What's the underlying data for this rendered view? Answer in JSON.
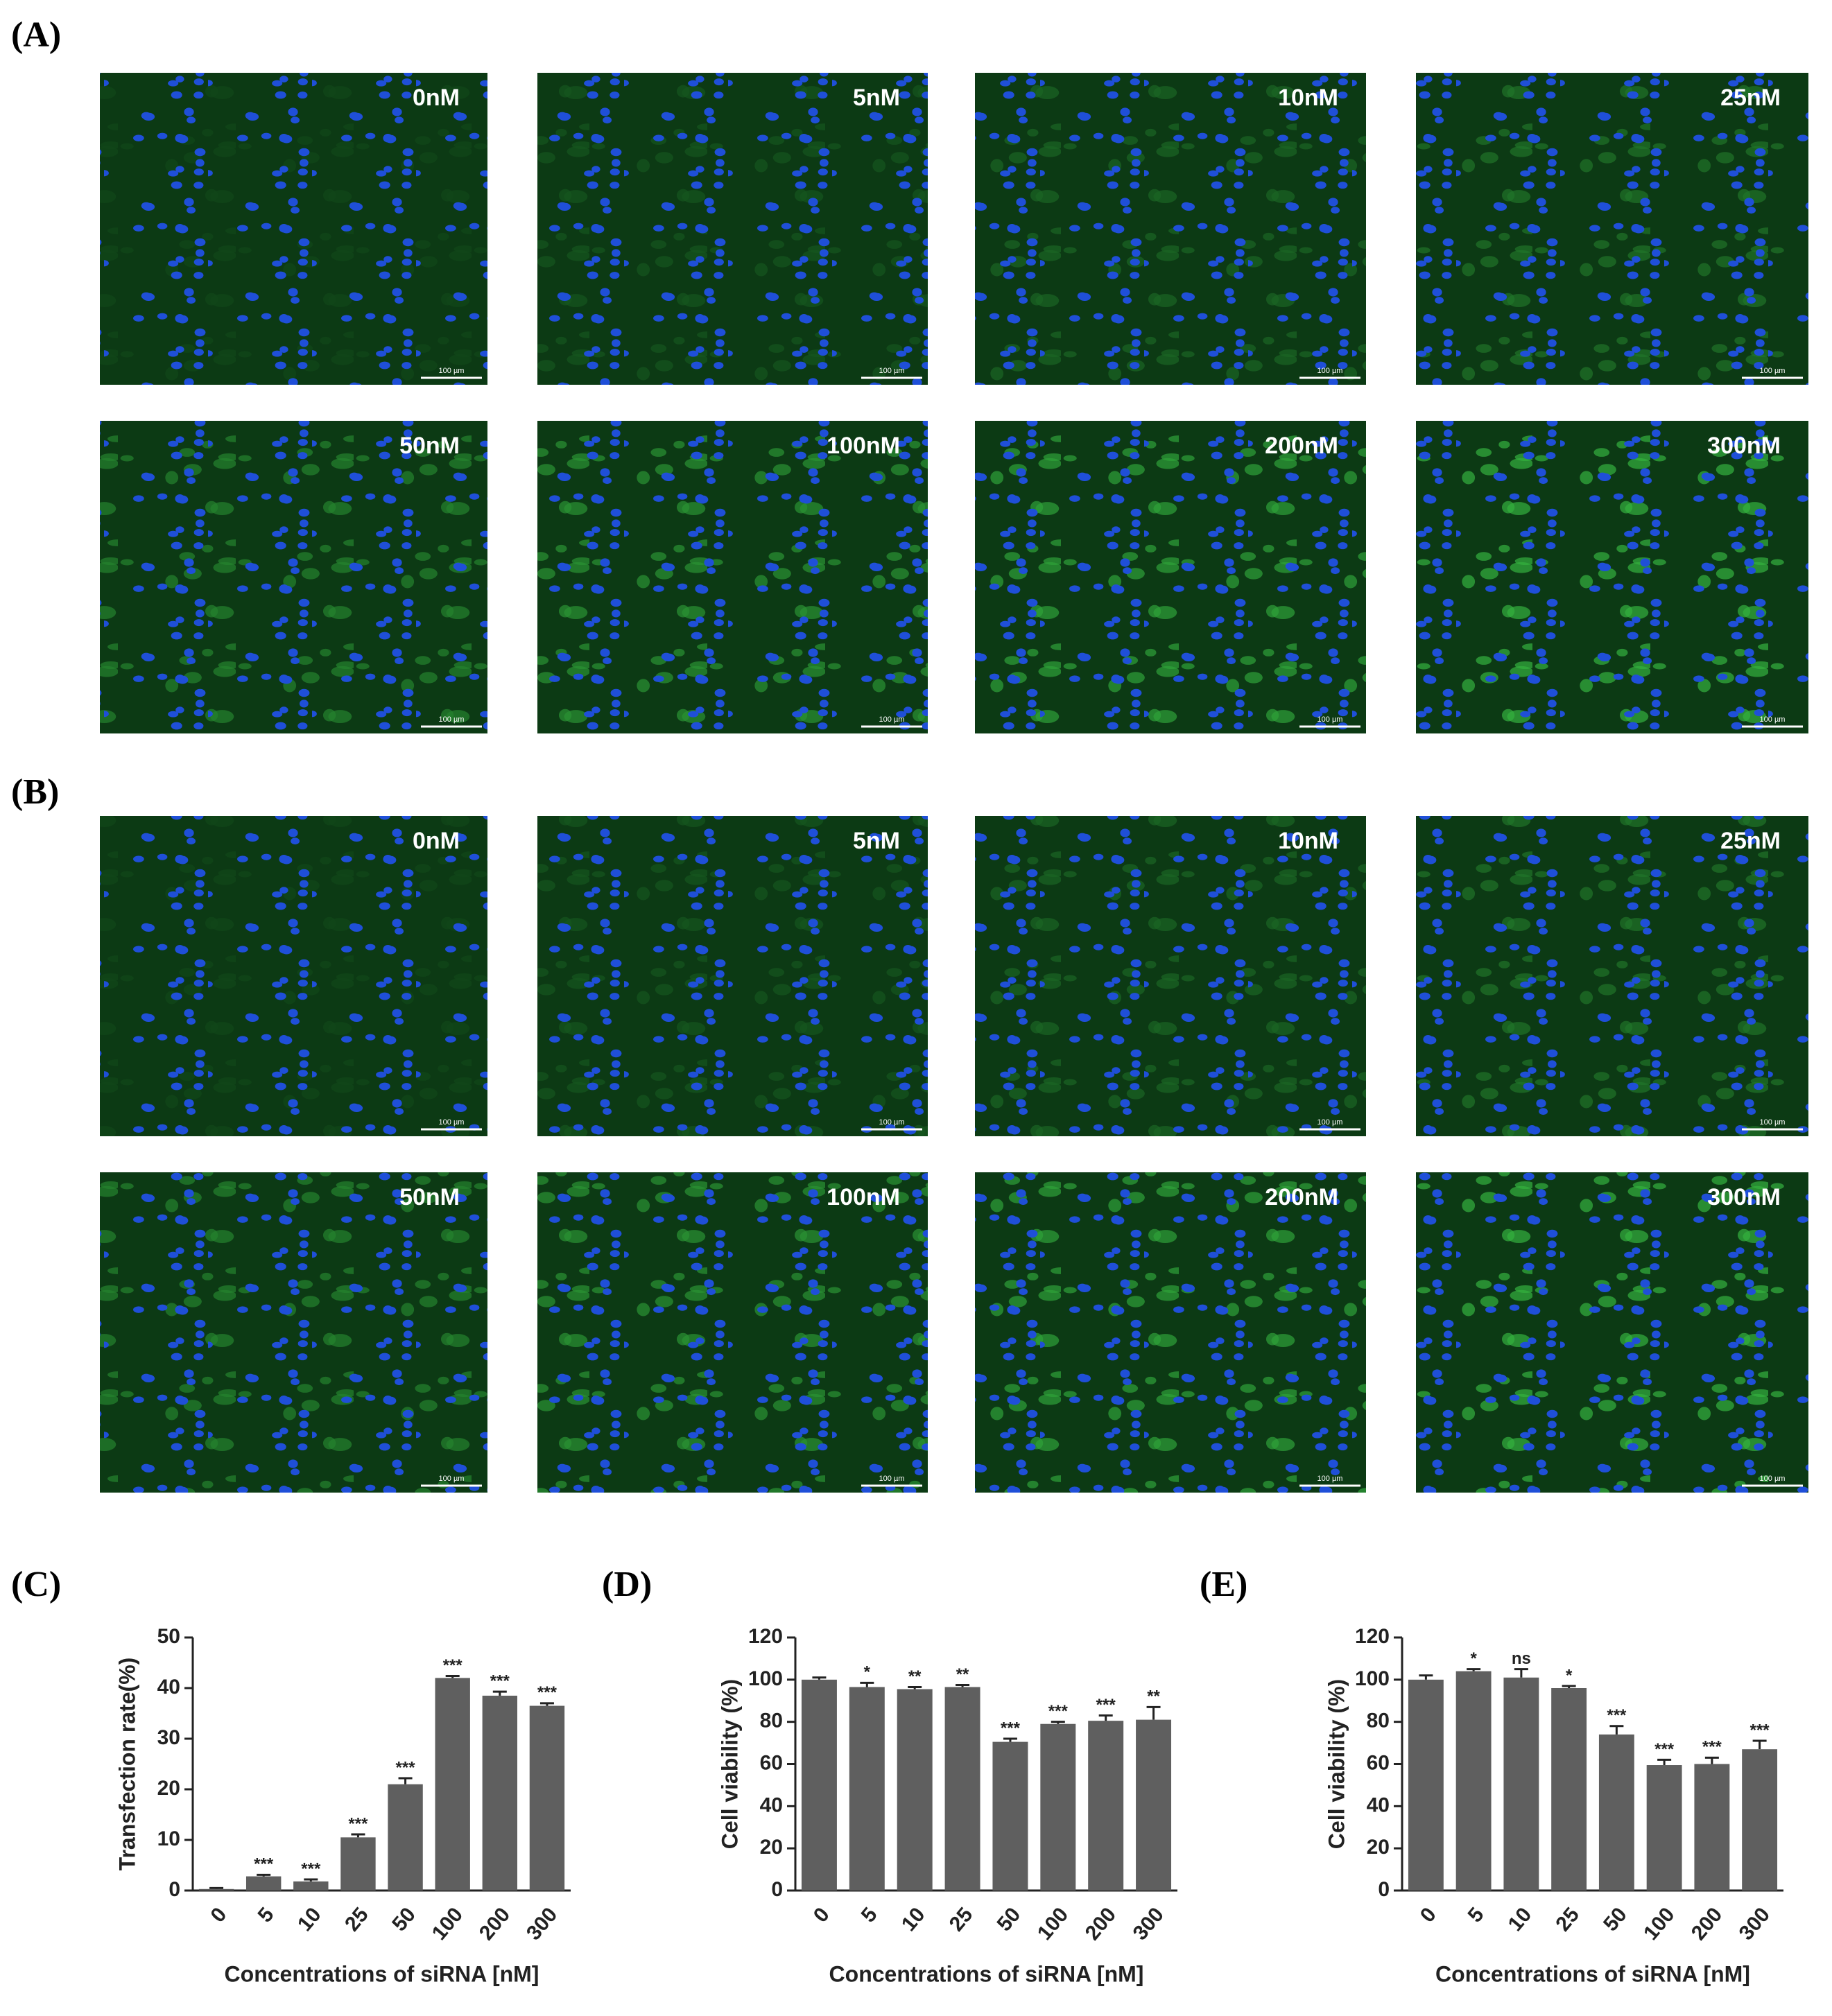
{
  "panels": [
    {
      "label": "(A)",
      "images": [
        {
          "label": "0nM",
          "scale_bar": "100 µm"
        },
        {
          "label": "5nM",
          "scale_bar": "100 µm"
        },
        {
          "label": "10nM",
          "scale_bar": "100 µm"
        },
        {
          "label": "25nM",
          "scale_bar": "100 µm"
        },
        {
          "label": "50nM",
          "scale_bar": "100 µm"
        },
        {
          "label": "100nM",
          "scale_bar": "100 µm"
        },
        {
          "label": "200nM",
          "scale_bar": "100 µm"
        },
        {
          "label": "300nM",
          "scale_bar": "100 µm"
        }
      ]
    },
    {
      "label": "(B)",
      "images": [
        {
          "label": "0nM",
          "scale_bar": "100 µm"
        },
        {
          "label": "5nM",
          "scale_bar": "100 µm"
        },
        {
          "label": "10nM",
          "scale_bar": "100 µm"
        },
        {
          "label": "25nM",
          "scale_bar": "100 µm"
        },
        {
          "label": "50nM",
          "scale_bar": "100 µm"
        },
        {
          "label": "100nM",
          "scale_bar": "100 µm"
        },
        {
          "label": "200nM",
          "scale_bar": "100 µm"
        },
        {
          "label": "300nM",
          "scale_bar": "100 µm"
        }
      ]
    }
  ],
  "chart_data": [
    {
      "type": "bar",
      "panel_label": "(C)",
      "y_label": "Transfection rate(%)",
      "x_label": "Concentrations of siRNA [nM]",
      "categories": [
        "0",
        "5",
        "10",
        "25",
        "50",
        "100",
        "200",
        "300"
      ],
      "values": [
        0.3,
        2.8,
        1.8,
        10.5,
        21,
        42,
        38.5,
        36.5
      ],
      "errors": [
        0.2,
        0.3,
        0.4,
        0.6,
        1.2,
        0.4,
        0.8,
        0.5
      ],
      "annotations": [
        null,
        "***",
        "***",
        "***",
        "***",
        "***",
        "***",
        "***"
      ],
      "color": "#5f5f5f",
      "ylim": [
        0,
        50
      ],
      "yticks": [
        0,
        10,
        20,
        30,
        40,
        50
      ]
    },
    {
      "type": "bar",
      "panel_label": "(D)",
      "y_label": "Cell viability (%)",
      "x_label": "Concentrations of siRNA [nM]",
      "categories": [
        "0",
        "5",
        "10",
        "25",
        "50",
        "100",
        "200",
        "300"
      ],
      "values": [
        100,
        96.5,
        95.5,
        96.5,
        70.5,
        79,
        80.5,
        81
      ],
      "errors": [
        1,
        2,
        1,
        1,
        1.5,
        1,
        2.5,
        6
      ],
      "annotations": [
        null,
        "*",
        "**",
        "**",
        "***",
        "***",
        "***",
        "**"
      ],
      "color": "#5f5f5f",
      "ylim": [
        0,
        120
      ],
      "yticks": [
        0,
        20,
        40,
        60,
        80,
        100,
        120
      ]
    },
    {
      "type": "bar",
      "panel_label": "(E)",
      "y_label": "Cell viability (%)",
      "x_label": "Concentrations of siRNA [nM]",
      "categories": [
        "0",
        "5",
        "10",
        "25",
        "50",
        "100",
        "200",
        "300"
      ],
      "values": [
        100,
        104,
        101,
        96,
        74,
        59.5,
        60,
        67
      ],
      "errors": [
        2,
        1,
        4,
        1,
        4,
        2.5,
        3,
        4
      ],
      "annotations": [
        null,
        "*",
        "ns",
        "*",
        "***",
        "***",
        "***",
        "***"
      ],
      "color": "#5f5f5f",
      "ylim": [
        0,
        120
      ],
      "yticks": [
        0,
        20,
        40,
        60,
        80,
        100,
        120
      ]
    }
  ]
}
